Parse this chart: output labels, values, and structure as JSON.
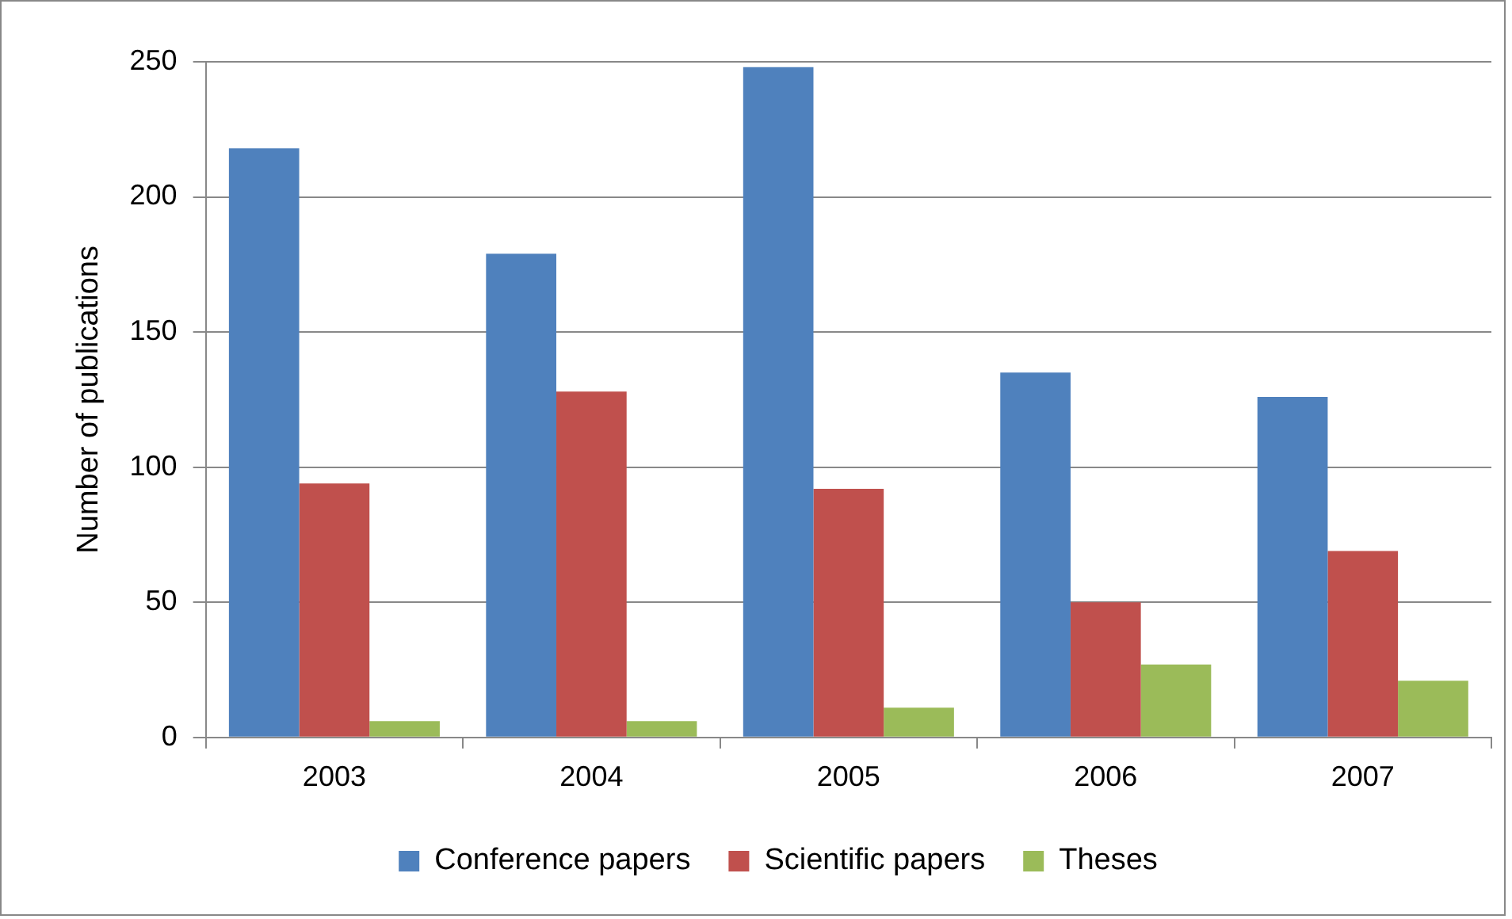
{
  "chart_data": {
    "type": "bar",
    "ylabel": "Number of publications",
    "categories": [
      "2003",
      "2004",
      "2005",
      "2006",
      "2007"
    ],
    "series": [
      {
        "name": "Conference papers",
        "color": "#4f81bd",
        "values": [
          218,
          179,
          248,
          135,
          126
        ]
      },
      {
        "name": "Scientific papers",
        "color": "#c0504d",
        "values": [
          94,
          128,
          92,
          50,
          69
        ]
      },
      {
        "name": "Theses",
        "color": "#9bbb59",
        "values": [
          6,
          6,
          11,
          27,
          21
        ]
      }
    ],
    "ylim": [
      0,
      250
    ],
    "yticks": [
      0,
      50,
      100,
      150,
      200,
      250
    ],
    "grid": "y",
    "legend": "bottom"
  }
}
